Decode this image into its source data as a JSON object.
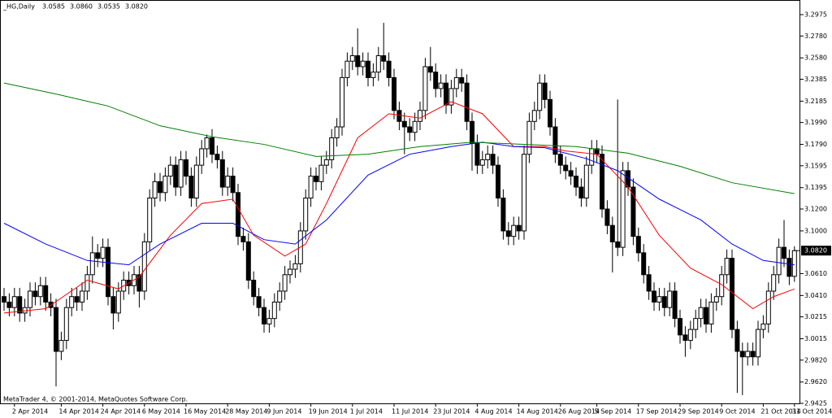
{
  "chart_data": {
    "type": "candlestick",
    "title": "_HG,Daily",
    "last_labels": [
      "3.0585",
      "3.0860",
      "3.0535",
      "3.0820"
    ],
    "footer": "MetaTrader 4, © 2001-2014, MetaQuotes Software Corp.",
    "current_price": {
      "value": 3.082,
      "label": "3.0820"
    },
    "up_color": "#ffffff",
    "down_color": "#000000",
    "ylim": [
      2.9425,
      3.2975
    ],
    "yticks": [
      {
        "value": 3.2975,
        "label": "3.2975"
      },
      {
        "value": 3.278,
        "label": "3.2780"
      },
      {
        "value": 3.258,
        "label": "3.2580"
      },
      {
        "value": 3.2385,
        "label": "3.2385"
      },
      {
        "value": 3.2185,
        "label": "3.2185"
      },
      {
        "value": 3.199,
        "label": "3.1990"
      },
      {
        "value": 3.179,
        "label": "3.1790"
      },
      {
        "value": 3.1595,
        "label": "3.1595"
      },
      {
        "value": 3.1395,
        "label": "3.1395"
      },
      {
        "value": 3.12,
        "label": "3.1200"
      },
      {
        "value": 3.1,
        "label": "3.1000"
      },
      {
        "value": 3.061,
        "label": "3.0610"
      },
      {
        "value": 3.041,
        "label": "3.0410"
      },
      {
        "value": 3.0215,
        "label": "3.0215"
      },
      {
        "value": 3.0015,
        "label": "3.0015"
      },
      {
        "value": 2.982,
        "label": "2.9820"
      },
      {
        "value": 2.962,
        "label": "2.9620"
      },
      {
        "value": 2.9425,
        "label": "2.9425"
      }
    ],
    "categories": [
      null,
      null,
      "2 Apr 2014",
      null,
      null,
      null,
      null,
      null,
      null,
      null,
      null,
      "14 Apr 2014",
      null,
      null,
      null,
      null,
      null,
      null,
      null,
      "24 Apr 2014",
      null,
      null,
      null,
      null,
      null,
      null,
      null,
      "6 May 2014",
      null,
      null,
      null,
      null,
      null,
      null,
      null,
      "16 May 2014",
      null,
      null,
      null,
      null,
      null,
      null,
      null,
      "28 May 2014",
      null,
      null,
      null,
      null,
      null,
      null,
      null,
      "9 Jun 2014",
      null,
      null,
      null,
      null,
      null,
      null,
      null,
      "19 Jun 2014",
      null,
      null,
      null,
      null,
      null,
      null,
      null,
      "1 Jul 2014",
      null,
      null,
      null,
      null,
      null,
      null,
      null,
      "11 Jul 2014",
      null,
      null,
      null,
      null,
      null,
      null,
      null,
      "23 Jul 2014",
      null,
      null,
      null,
      null,
      null,
      null,
      null,
      "4 Aug 2014",
      null,
      null,
      null,
      null,
      null,
      null,
      null,
      "14 Aug 2014",
      null,
      null,
      null,
      null,
      null,
      null,
      null,
      "26 Aug 2014",
      null,
      null,
      null,
      null,
      null,
      null,
      "5 Sep 2014",
      null,
      null,
      null,
      null,
      null,
      null,
      null,
      "17 Sep 2014",
      null,
      null,
      null,
      null,
      null,
      null,
      null,
      "29 Sep 2014",
      null,
      null,
      null,
      null,
      null,
      null,
      null,
      "9 Oct 2014",
      null,
      null,
      null,
      null,
      null,
      null,
      null,
      "21 Oct 2014",
      null,
      null,
      null,
      null,
      null,
      "31 Oct 2014"
    ],
    "open": [
      3.04,
      3.035,
      3.03,
      3.04,
      3.025,
      3.03,
      3.045,
      3.04,
      3.05,
      3.035,
      3.03,
      2.99,
      3.0,
      3.03,
      3.04,
      3.035,
      3.045,
      3.06,
      3.08,
      3.075,
      3.085,
      3.04,
      3.025,
      3.045,
      3.055,
      3.05,
      3.06,
      3.045,
      3.09,
      3.13,
      3.145,
      3.135,
      3.15,
      3.16,
      3.14,
      3.165,
      3.15,
      3.13,
      3.16,
      3.175,
      3.185,
      3.17,
      3.165,
      3.14,
      3.15,
      3.135,
      3.095,
      3.09,
      3.055,
      3.04,
      3.03,
      3.015,
      3.02,
      3.035,
      3.045,
      3.06,
      3.065,
      3.07,
      3.1,
      3.13,
      3.15,
      3.145,
      3.16,
      3.165,
      3.185,
      3.195,
      3.24,
      3.255,
      3.26,
      3.25,
      3.255,
      3.24,
      3.245,
      3.26,
      3.255,
      3.24,
      3.21,
      3.2,
      3.195,
      3.19,
      3.2,
      3.21,
      3.25,
      3.245,
      3.23,
      3.235,
      3.215,
      3.23,
      3.24,
      3.235,
      3.2,
      3.18,
      3.16,
      3.165,
      3.17,
      3.16,
      3.13,
      3.1,
      3.095,
      3.105,
      3.1,
      3.17,
      3.2,
      3.21,
      3.235,
      3.22,
      3.195,
      3.17,
      3.16,
      3.155,
      3.15,
      3.14,
      3.13,
      3.16,
      3.175,
      3.17,
      3.12,
      3.105,
      3.09,
      3.085,
      3.155,
      3.14,
      3.095,
      3.08,
      3.06,
      3.045,
      3.035,
      3.04,
      3.03,
      3.045,
      3.02,
      3.005,
      3.0,
      3.01,
      3.02,
      3.03,
      3.015,
      3.035,
      3.04,
      3.06,
      3.075,
      3.01,
      2.99,
      2.985,
      2.99,
      2.985,
      3.01,
      3.015,
      3.045,
      3.06,
      3.085,
      3.075,
      3.0585
    ],
    "high": [
      3.048,
      3.043,
      3.048,
      3.048,
      3.038,
      3.053,
      3.053,
      3.058,
      3.058,
      3.043,
      3.038,
      3.008,
      3.038,
      3.048,
      3.048,
      3.053,
      3.068,
      3.095,
      3.088,
      3.093,
      3.093,
      3.048,
      3.053,
      3.063,
      3.063,
      3.068,
      3.068,
      3.098,
      3.138,
      3.153,
      3.153,
      3.158,
      3.168,
      3.168,
      3.173,
      3.173,
      3.158,
      3.168,
      3.183,
      3.188,
      3.193,
      3.178,
      3.173,
      3.158,
      3.158,
      3.143,
      3.103,
      3.098,
      3.063,
      3.048,
      3.038,
      3.028,
      3.043,
      3.053,
      3.068,
      3.073,
      3.078,
      3.108,
      3.138,
      3.158,
      3.158,
      3.168,
      3.173,
      3.193,
      3.203,
      3.248,
      3.263,
      3.268,
      3.285,
      3.263,
      3.263,
      3.253,
      3.268,
      3.29,
      3.263,
      3.248,
      3.218,
      3.208,
      3.203,
      3.208,
      3.218,
      3.258,
      3.268,
      3.253,
      3.243,
      3.243,
      3.238,
      3.248,
      3.248,
      3.243,
      3.208,
      3.188,
      3.173,
      3.178,
      3.178,
      3.168,
      3.138,
      3.108,
      3.113,
      3.113,
      3.178,
      3.208,
      3.218,
      3.243,
      3.243,
      3.228,
      3.203,
      3.178,
      3.168,
      3.163,
      3.158,
      3.148,
      3.168,
      3.183,
      3.183,
      3.178,
      3.128,
      3.113,
      3.22,
      3.163,
      3.163,
      3.148,
      3.103,
      3.088,
      3.068,
      3.053,
      3.048,
      3.048,
      3.053,
      3.053,
      3.028,
      3.013,
      3.018,
      3.028,
      3.038,
      3.038,
      3.043,
      3.048,
      3.068,
      3.083,
      3.083,
      3.018,
      2.998,
      2.998,
      2.998,
      3.018,
      3.023,
      3.053,
      3.068,
      3.093,
      3.11,
      3.083,
      3.086
    ],
    "low": [
      3.027,
      3.022,
      3.022,
      3.017,
      3.017,
      3.022,
      3.032,
      3.032,
      3.027,
      3.022,
      2.958,
      2.982,
      2.992,
      3.022,
      3.027,
      3.027,
      3.037,
      3.052,
      3.067,
      3.067,
      3.032,
      3.01,
      3.017,
      3.037,
      3.042,
      3.042,
      3.03,
      3.037,
      3.082,
      3.122,
      3.127,
      3.127,
      3.142,
      3.132,
      3.132,
      3.142,
      3.122,
      3.122,
      3.152,
      3.167,
      3.162,
      3.157,
      3.132,
      3.132,
      3.127,
      3.087,
      3.082,
      3.047,
      3.032,
      3.022,
      3.007,
      3.007,
      3.012,
      3.027,
      3.037,
      3.052,
      3.057,
      3.062,
      3.092,
      3.122,
      3.137,
      3.137,
      3.152,
      3.157,
      3.177,
      3.187,
      3.232,
      3.247,
      3.242,
      3.242,
      3.232,
      3.232,
      3.237,
      3.247,
      3.232,
      3.202,
      3.192,
      3.17,
      3.182,
      3.182,
      3.192,
      3.202,
      3.237,
      3.222,
      3.222,
      3.207,
      3.207,
      3.222,
      3.227,
      3.192,
      3.155,
      3.152,
      3.152,
      3.157,
      3.152,
      3.122,
      3.092,
      3.087,
      3.087,
      3.092,
      3.092,
      3.162,
      3.192,
      3.202,
      3.212,
      3.187,
      3.162,
      3.152,
      3.147,
      3.142,
      3.132,
      3.122,
      3.122,
      3.152,
      3.162,
      3.112,
      3.097,
      3.062,
      3.077,
      3.077,
      3.132,
      3.087,
      3.072,
      3.052,
      3.037,
      3.027,
      3.027,
      3.022,
      3.022,
      3.012,
      2.997,
      2.985,
      2.992,
      3.002,
      3.012,
      3.007,
      3.007,
      3.027,
      3.032,
      3.052,
      3.002,
      2.952,
      2.95,
      2.977,
      2.977,
      2.977,
      3.002,
      3.007,
      3.037,
      3.052,
      3.067,
      3.0505,
      3.0535
    ],
    "close": [
      3.035,
      3.03,
      3.04,
      3.025,
      3.03,
      3.045,
      3.04,
      3.05,
      3.035,
      3.03,
      2.99,
      3.0,
      3.03,
      3.04,
      3.035,
      3.045,
      3.06,
      3.08,
      3.075,
      3.085,
      3.04,
      3.025,
      3.045,
      3.055,
      3.05,
      3.06,
      3.045,
      3.09,
      3.13,
      3.145,
      3.135,
      3.15,
      3.16,
      3.14,
      3.165,
      3.15,
      3.13,
      3.16,
      3.175,
      3.185,
      3.17,
      3.165,
      3.14,
      3.15,
      3.135,
      3.095,
      3.09,
      3.055,
      3.04,
      3.03,
      3.015,
      3.02,
      3.035,
      3.045,
      3.06,
      3.065,
      3.07,
      3.1,
      3.13,
      3.15,
      3.145,
      3.16,
      3.165,
      3.185,
      3.195,
      3.24,
      3.255,
      3.26,
      3.25,
      3.255,
      3.24,
      3.245,
      3.26,
      3.255,
      3.24,
      3.21,
      3.2,
      3.195,
      3.19,
      3.2,
      3.21,
      3.25,
      3.245,
      3.23,
      3.235,
      3.215,
      3.23,
      3.24,
      3.235,
      3.2,
      3.18,
      3.16,
      3.165,
      3.17,
      3.16,
      3.13,
      3.1,
      3.095,
      3.105,
      3.1,
      3.17,
      3.2,
      3.21,
      3.235,
      3.22,
      3.195,
      3.17,
      3.16,
      3.155,
      3.15,
      3.14,
      3.13,
      3.16,
      3.175,
      3.17,
      3.12,
      3.105,
      3.09,
      3.085,
      3.155,
      3.14,
      3.095,
      3.08,
      3.06,
      3.045,
      3.035,
      3.04,
      3.03,
      3.045,
      3.02,
      3.005,
      3.0,
      3.01,
      3.02,
      3.03,
      3.015,
      3.035,
      3.04,
      3.06,
      3.075,
      3.01,
      2.99,
      2.985,
      2.99,
      2.985,
      3.01,
      3.015,
      3.045,
      3.06,
      3.085,
      3.075,
      3.0585,
      3.082
    ],
    "series": [
      {
        "color": "#ff0000",
        "x": [
          0,
          8,
          16,
          22,
          26,
          32,
          38,
          44,
          48,
          54,
          58,
          62,
          68,
          74,
          80,
          86,
          92,
          98,
          104,
          108,
          114,
          120,
          126,
          132,
          138,
          144,
          148,
          152
        ],
        "values": [
          3.025,
          3.029,
          3.055,
          3.047,
          3.058,
          3.096,
          3.125,
          3.129,
          3.096,
          3.077,
          3.088,
          3.125,
          3.185,
          3.207,
          3.203,
          3.218,
          3.207,
          3.177,
          3.177,
          3.173,
          3.17,
          3.14,
          3.096,
          3.066,
          3.051,
          3.029,
          3.04,
          3.047
        ]
      },
      {
        "color": "#0000ff",
        "x": [
          0,
          8,
          16,
          24,
          30,
          38,
          44,
          50,
          56,
          62,
          70,
          78,
          86,
          92,
          98,
          104,
          112,
          118,
          126,
          134,
          140,
          146,
          152
        ],
        "values": [
          3.107,
          3.088,
          3.073,
          3.069,
          3.088,
          3.107,
          3.107,
          3.092,
          3.088,
          3.11,
          3.151,
          3.17,
          3.177,
          3.181,
          3.177,
          3.176,
          3.166,
          3.155,
          3.129,
          3.11,
          3.088,
          3.073,
          3.069
        ]
      },
      {
        "color": "#008000",
        "x": [
          0,
          10,
          20,
          30,
          40,
          50,
          60,
          70,
          80,
          90,
          100,
          110,
          120,
          130,
          140,
          152
        ],
        "values": [
          3.235,
          3.225,
          3.214,
          3.196,
          3.186,
          3.179,
          3.168,
          3.17,
          3.177,
          3.181,
          3.179,
          3.177,
          3.171,
          3.159,
          3.144,
          3.134
        ]
      }
    ]
  }
}
